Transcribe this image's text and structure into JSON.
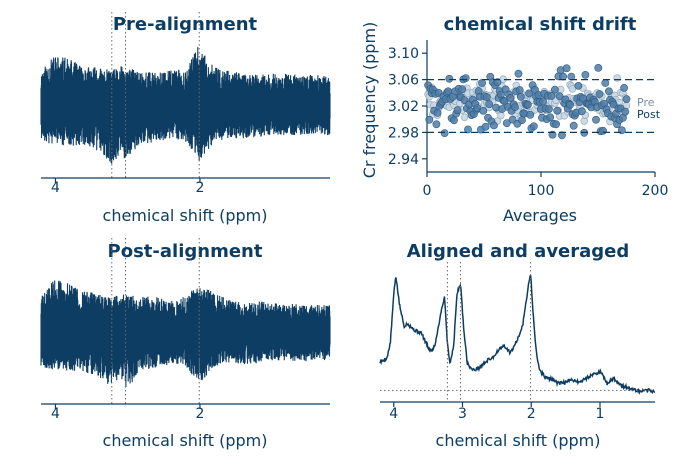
{
  "colors": {
    "primary": "#0d3d63",
    "pre_marker": "#4f7da6",
    "post_marker": "#c9d6e2",
    "guide": "#6b6b6b"
  },
  "chart_data": [
    {
      "id": "pre",
      "type": "line",
      "title": "Pre-alignment",
      "xlabel": "chemical shift (ppm)",
      "ylabel": "",
      "x_axis": "reversed",
      "xlim": [
        4.2,
        0.2
      ],
      "xticks": [
        {
          "value": 4,
          "label": "4"
        },
        {
          "value": 2,
          "label": "2"
        }
      ],
      "reference_lines_ppm": [
        3.22,
        3.03,
        2.01
      ],
      "series": [
        {
          "style": "noisy spectrum envelope",
          "x": [
            4.2,
            4.0,
            3.8,
            3.6,
            3.4,
            3.22,
            3.1,
            3.03,
            2.8,
            2.6,
            2.4,
            2.2,
            2.01,
            1.8,
            1.6,
            1.4,
            1.2,
            1.0,
            0.8,
            0.6,
            0.4,
            0.2
          ],
          "upper": [
            0.55,
            0.8,
            0.72,
            0.62,
            0.6,
            0.55,
            0.62,
            0.58,
            0.55,
            0.52,
            0.55,
            0.58,
            0.95,
            0.6,
            0.55,
            0.5,
            0.48,
            0.5,
            0.5,
            0.48,
            0.48,
            0.45
          ],
          "lower": [
            -0.55,
            -0.6,
            -0.62,
            -0.6,
            -0.7,
            -0.9,
            -0.75,
            -0.85,
            -0.6,
            -0.55,
            -0.5,
            -0.55,
            -0.85,
            -0.55,
            -0.5,
            -0.5,
            -0.48,
            -0.45,
            -0.45,
            -0.45,
            -0.45,
            -0.45
          ]
        }
      ]
    },
    {
      "id": "drift",
      "type": "scatter",
      "title": "chemical shift drift",
      "xlabel": "Averages",
      "ylabel": "Cr frequency (ppm)",
      "xlim": [
        0,
        200
      ],
      "ylim": [
        2.92,
        3.12
      ],
      "xticks": [
        0,
        100,
        200
      ],
      "yticks": [
        "2.94",
        "2.98",
        "3.02",
        "3.06",
        "3.10"
      ],
      "hlines": [
        3.06,
        2.98
      ],
      "series": [
        {
          "name": "Pre",
          "seed": 7,
          "n": 170,
          "mean": 3.025,
          "sd": 0.022
        },
        {
          "name": "Post",
          "seed": 3,
          "n": 170,
          "mean": 3.028,
          "sd": 0.013
        }
      ]
    },
    {
      "id": "post",
      "type": "line",
      "title": "Post-alignment",
      "xlabel": "chemical shift (ppm)",
      "ylabel": "",
      "x_axis": "reversed",
      "xlim": [
        4.2,
        0.2
      ],
      "xticks": [
        {
          "value": 4,
          "label": "4"
        },
        {
          "value": 2,
          "label": "2"
        }
      ],
      "reference_lines_ppm": [
        3.22,
        3.03,
        2.01
      ],
      "series": [
        {
          "style": "noisy spectrum envelope",
          "x": [
            4.2,
            4.0,
            3.8,
            3.6,
            3.4,
            3.22,
            3.1,
            3.03,
            2.8,
            2.6,
            2.4,
            2.2,
            2.01,
            1.8,
            1.6,
            1.4,
            1.2,
            1.0,
            0.8,
            0.6,
            0.4,
            0.2
          ],
          "upper": [
            0.55,
            0.85,
            0.75,
            0.65,
            0.6,
            0.55,
            0.62,
            0.58,
            0.55,
            0.55,
            0.5,
            0.55,
            0.75,
            0.6,
            0.5,
            0.45,
            0.48,
            0.45,
            0.45,
            0.42,
            0.42,
            0.42
          ],
          "lower": [
            -0.55,
            -0.6,
            -0.6,
            -0.62,
            -0.7,
            -0.85,
            -0.7,
            -0.9,
            -0.6,
            -0.55,
            -0.5,
            -0.55,
            -0.8,
            -0.55,
            -0.5,
            -0.5,
            -0.48,
            -0.45,
            -0.45,
            -0.45,
            -0.45,
            -0.45
          ]
        }
      ]
    },
    {
      "id": "avg",
      "type": "line",
      "title": "Aligned and averaged",
      "xlabel": "chemical shift (ppm)",
      "ylabel": "",
      "x_axis": "reversed",
      "xlim": [
        4.2,
        0.2
      ],
      "xticks": [
        {
          "value": 4,
          "label": "4"
        },
        {
          "value": 3,
          "label": "3"
        },
        {
          "value": 2,
          "label": "2"
        },
        {
          "value": 1,
          "label": "1"
        }
      ],
      "reference_lines_ppm": [
        3.22,
        3.03,
        2.01
      ],
      "baseline": 0.0,
      "series": [
        {
          "x": [
            4.2,
            4.1,
            4.05,
            4.0,
            3.97,
            3.92,
            3.85,
            3.8,
            3.7,
            3.6,
            3.5,
            3.45,
            3.4,
            3.3,
            3.26,
            3.22,
            3.18,
            3.13,
            3.08,
            3.03,
            2.98,
            2.93,
            2.85,
            2.75,
            2.65,
            2.55,
            2.48,
            2.4,
            2.3,
            2.2,
            2.12,
            2.06,
            2.01,
            1.97,
            1.93,
            1.88,
            1.8,
            1.7,
            1.6,
            1.5,
            1.4,
            1.3,
            1.2,
            1.1,
            1.0,
            0.95,
            0.9,
            0.8,
            0.7,
            0.6,
            0.5,
            0.4,
            0.3,
            0.2
          ],
          "y": [
            0.21,
            0.24,
            0.35,
            0.72,
            0.86,
            0.65,
            0.48,
            0.5,
            0.45,
            0.43,
            0.32,
            0.29,
            0.34,
            0.62,
            0.7,
            0.35,
            0.2,
            0.33,
            0.72,
            0.8,
            0.45,
            0.2,
            0.15,
            0.17,
            0.22,
            0.25,
            0.3,
            0.33,
            0.28,
            0.38,
            0.5,
            0.72,
            0.88,
            0.55,
            0.3,
            0.15,
            0.1,
            0.08,
            0.05,
            0.06,
            0.08,
            0.06,
            0.09,
            0.12,
            0.14,
            0.1,
            0.05,
            0.09,
            0.04,
            0.02,
            0.0,
            -0.01,
            0.0,
            -0.01
          ]
        }
      ]
    }
  ]
}
